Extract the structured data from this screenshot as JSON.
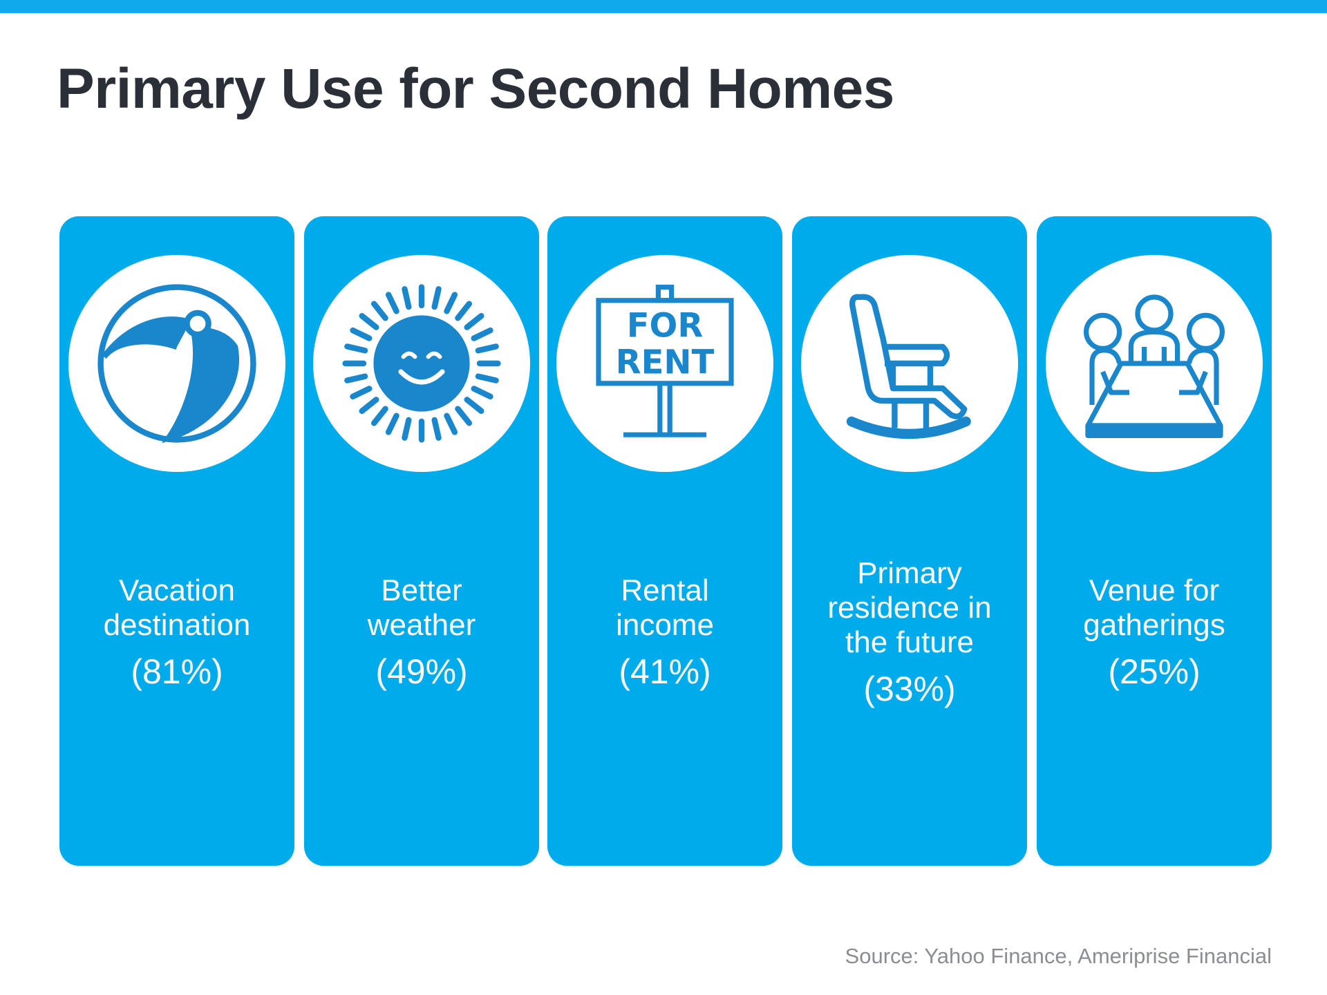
{
  "title": "Primary Use for Second Homes",
  "colors": {
    "accent": "#00abeb",
    "icon": "#1a86cc",
    "title": "#2b2f38"
  },
  "cards": [
    {
      "icon": "beach-ball-icon",
      "label": "Vacation\ndestination",
      "percent": "(81%)"
    },
    {
      "icon": "sun-icon",
      "label": "Better\nweather",
      "percent": "(49%)"
    },
    {
      "icon": "for-rent-sign-icon",
      "label": "Rental\nincome",
      "percent": "(41%)",
      "sign_text": "FOR RENT"
    },
    {
      "icon": "rocking-chair-icon",
      "label": "Primary\nresidence in\nthe future",
      "percent": "(33%)"
    },
    {
      "icon": "meeting-table-icon",
      "label": "Venue for\ngatherings",
      "percent": "(25%)"
    }
  ],
  "source": "Source: Yahoo  Finance, Ameriprise Financial"
}
